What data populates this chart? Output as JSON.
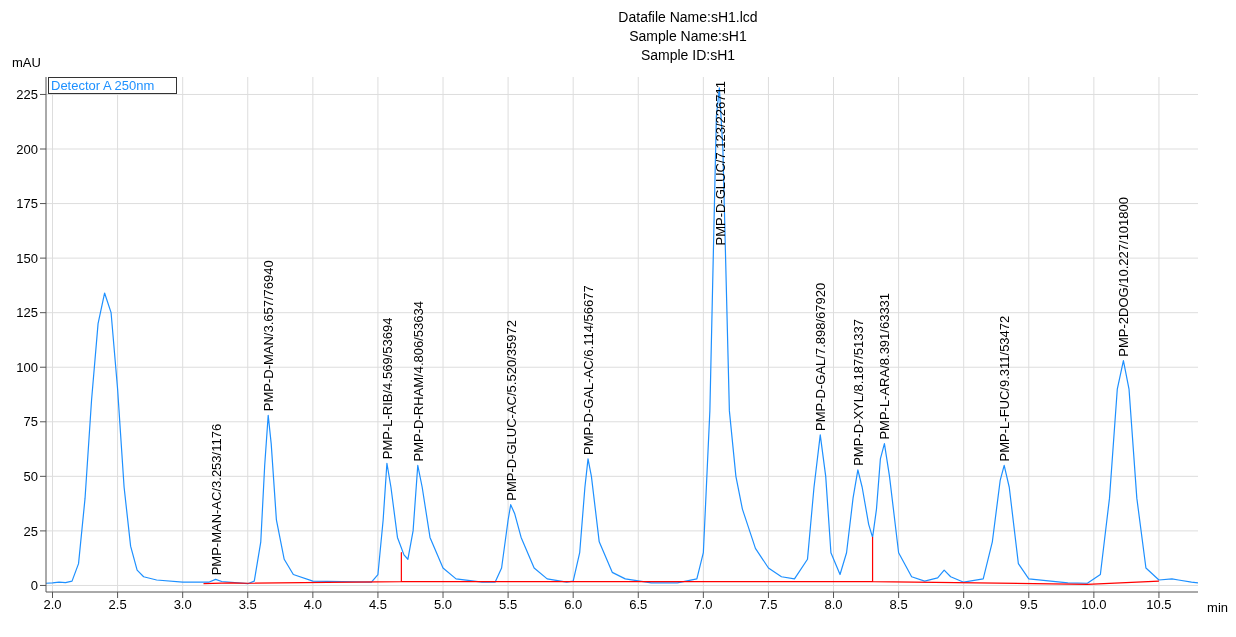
{
  "chart_data": {
    "type": "line",
    "title": "Datafile Name:sH1.lcd",
    "subtitle": "Sample Name:sH1\nSample ID:sH1",
    "xlabel": "min",
    "ylabel": "mAU",
    "xlim": [
      1.95,
      10.8
    ],
    "xticks": [
      {
        "value": 2,
        "label": "2.0"
      },
      {
        "value": 2.5,
        "label": "2.5"
      },
      {
        "value": 3,
        "label": "3.0"
      },
      {
        "value": 3.5,
        "label": "3.5"
      },
      {
        "value": 4,
        "label": "4.0"
      },
      {
        "value": 4.5,
        "label": "4.5"
      },
      {
        "value": 5,
        "label": "5.0"
      },
      {
        "value": 5.5,
        "label": "5.5"
      },
      {
        "value": 6,
        "label": "6.0"
      },
      {
        "value": 6.5,
        "label": "6.5"
      },
      {
        "value": 7,
        "label": "7.0"
      },
      {
        "value": 7.5,
        "label": "7.5"
      },
      {
        "value": 8,
        "label": "8.0"
      },
      {
        "value": 8.5,
        "label": "8.5"
      },
      {
        "value": 9,
        "label": "9.0"
      },
      {
        "value": 9.5,
        "label": "9.5"
      },
      {
        "value": 10,
        "label": "10.0"
      },
      {
        "value": 10.5,
        "label": "10.5"
      }
    ],
    "ylim": [
      -3,
      233
    ],
    "yticks": [
      0,
      25,
      50,
      75,
      100,
      125,
      150,
      175,
      200,
      225
    ],
    "grid": true,
    "legend": "top left",
    "marker": "none",
    "line_style": "solid",
    "series": [
      {
        "name": "Detector A 250nm",
        "color": "#1e90ff",
        "x": [
          1.95,
          2.0,
          2.05,
          2.1,
          2.15,
          2.2,
          2.25,
          2.3,
          2.35,
          2.4,
          2.45,
          2.5,
          2.55,
          2.6,
          2.65,
          2.7,
          2.8,
          3.0,
          3.2,
          3.253,
          3.3,
          3.5,
          3.55,
          3.6,
          3.63,
          3.657,
          3.68,
          3.72,
          3.78,
          3.85,
          4.0,
          4.45,
          4.5,
          4.54,
          4.569,
          4.6,
          4.65,
          4.7,
          4.73,
          4.77,
          4.806,
          4.84,
          4.9,
          5.0,
          5.1,
          5.3,
          5.4,
          5.45,
          5.5,
          5.52,
          5.55,
          5.6,
          5.7,
          5.8,
          5.95,
          6.0,
          6.05,
          6.09,
          6.114,
          6.14,
          6.2,
          6.3,
          6.4,
          6.6,
          6.8,
          6.95,
          7.0,
          7.05,
          7.1,
          7.123,
          7.15,
          7.2,
          7.25,
          7.3,
          7.4,
          7.5,
          7.6,
          7.7,
          7.8,
          7.85,
          7.898,
          7.94,
          7.98,
          8.05,
          8.1,
          8.15,
          8.187,
          8.22,
          8.27,
          8.3,
          8.33,
          8.36,
          8.391,
          8.43,
          8.5,
          8.6,
          8.7,
          8.8,
          8.85,
          8.9,
          9.0,
          9.15,
          9.22,
          9.28,
          9.311,
          9.35,
          9.42,
          9.5,
          9.8,
          9.95,
          10.05,
          10.12,
          10.18,
          10.227,
          10.27,
          10.33,
          10.4,
          10.5,
          10.6,
          10.65,
          10.75,
          10.8
        ],
        "values": [
          1,
          1.2,
          1.5,
          1.3,
          2,
          10,
          40,
          85,
          120,
          134,
          125,
          90,
          45,
          18,
          7,
          4,
          2.5,
          1.5,
          1.5,
          2.8,
          1.8,
          0.8,
          2,
          20,
          55,
          78,
          65,
          30,
          12,
          5,
          2,
          1.5,
          5,
          30,
          56,
          45,
          22,
          14,
          12,
          25,
          55,
          45,
          22,
          8,
          3,
          1.5,
          1.5,
          8,
          30,
          37,
          33,
          22,
          8,
          3,
          1.5,
          2,
          15,
          45,
          58,
          50,
          20,
          6,
          3,
          1.2,
          1.2,
          3,
          15,
          80,
          215,
          228,
          200,
          80,
          50,
          35,
          17,
          8,
          4,
          3,
          12,
          45,
          69,
          50,
          15,
          5,
          15,
          40,
          53,
          45,
          28,
          22,
          35,
          58,
          65,
          50,
          15,
          4,
          2,
          3.5,
          7,
          4,
          1.5,
          3,
          20,
          48,
          55,
          45,
          10,
          3,
          1.2,
          1,
          5,
          40,
          90,
          103,
          90,
          40,
          8,
          2.5,
          3,
          2.5,
          1.5,
          1.2
        ]
      },
      {
        "color": "#ff0000",
        "x": [
          3.16,
          3.37,
          3.5,
          4.68,
          4.68,
          4.68,
          8.3,
          8.3,
          8.3,
          9.95,
          10.5
        ],
        "values": [
          0.8,
          1.2,
          1,
          1.8,
          15,
          1.8,
          1.8,
          22,
          1.8,
          0.5,
          2
        ]
      }
    ],
    "annotations": [
      {
        "text": "PMP-MAN-AC/3.253/1176",
        "x": 3.253,
        "y": 2.8
      },
      {
        "text": "PMP-D-MAN/3.657/76940",
        "x": 3.657,
        "y": 78
      },
      {
        "text": "PMP-L-RIB/4.569/53694",
        "x": 4.569,
        "y": 56
      },
      {
        "text": "PMP-D-RHAM/4.806/53634",
        "x": 4.806,
        "y": 55
      },
      {
        "text": "PMP-D-GLUC-AC/5.520/35972",
        "x": 5.52,
        "y": 37
      },
      {
        "text": "PMP-D-GAL-AC/6.114/56677",
        "x": 6.114,
        "y": 58
      },
      {
        "text": "PMP-D-GLUC/7.123/226711",
        "x": 7.123,
        "y": 228
      },
      {
        "text": "PMP-D-GAL/7.898/67920",
        "x": 7.898,
        "y": 69
      },
      {
        "text": "PMP-D-XYL/8.187/51337",
        "x": 8.187,
        "y": 53
      },
      {
        "text": "PMP-L-ARA/8.391/63331",
        "x": 8.391,
        "y": 65
      },
      {
        "text": "PMP-L-FUC/9.311/53472",
        "x": 9.311,
        "y": 55
      },
      {
        "text": "PMP-2DOG/10.227/101800",
        "x": 10.227,
        "y": 103
      }
    ]
  }
}
